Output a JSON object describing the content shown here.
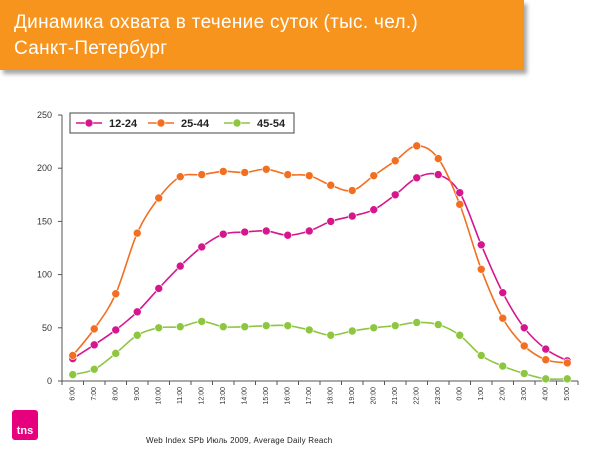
{
  "title": {
    "line1": "Динамика охвата в течение суток (тыс. чел.)",
    "line2": "Санкт-Петербург"
  },
  "logo_text": "tns",
  "source": "Web Index SPb  Июль  2009, Average Daily Reach",
  "colors": {
    "banner": "#f7941d",
    "series_12_24": "#d6168c",
    "series_25_44": "#f26f21",
    "series_45_54": "#8dc63f"
  },
  "chart_data": {
    "type": "line",
    "categories": [
      "6:00",
      "7:00",
      "8:00",
      "9:00",
      "10:00",
      "11:00",
      "12:00",
      "13:00",
      "14:00",
      "15:00",
      "16:00",
      "17:00",
      "18:00",
      "19:00",
      "20:00",
      "21:00",
      "22:00",
      "23:00",
      "0:00",
      "1:00",
      "2:00",
      "3:00",
      "4:00",
      "5:00"
    ],
    "series": [
      {
        "name": "12-24",
        "color": "#d6168c",
        "values": [
          21,
          34,
          48,
          65,
          87,
          108,
          126,
          138,
          140,
          141,
          137,
          141,
          150,
          155,
          161,
          175,
          191,
          194,
          177,
          128,
          83,
          50,
          30,
          19
        ]
      },
      {
        "name": "25-44",
        "color": "#f26f21",
        "values": [
          24,
          49,
          82,
          139,
          172,
          192,
          194,
          197,
          196,
          199,
          194,
          193,
          184,
          179,
          193,
          207,
          221,
          209,
          166,
          105,
          59,
          33,
          20,
          17
        ]
      },
      {
        "name": "45-54",
        "color": "#8dc63f",
        "values": [
          6,
          11,
          26,
          43,
          50,
          51,
          56,
          51,
          51,
          52,
          52,
          48,
          43,
          47,
          50,
          52,
          55,
          53,
          43,
          24,
          14,
          7,
          2,
          2
        ]
      }
    ],
    "ylim": [
      0,
      250
    ],
    "yticks": [
      0,
      50,
      100,
      150,
      200,
      250
    ],
    "grid": false,
    "legend": "top-left"
  }
}
